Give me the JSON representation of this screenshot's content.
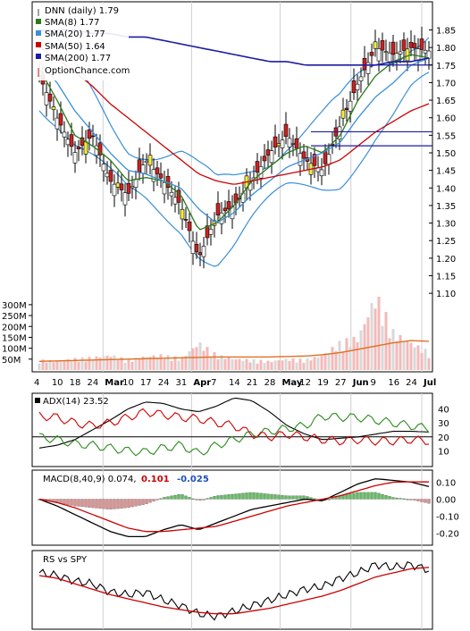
{
  "legend": {
    "ticker": "DNN (daily) 1.79",
    "sma8": "SMA(8) 1.77",
    "sma20": "SMA(20) 1.77",
    "sma50": "SMA(50) 1.64",
    "sma200": "SMA(200) 1.77",
    "site": "OptionChance.com"
  },
  "colors": {
    "up": "#ffffff",
    "down": "#cc2222",
    "doji": "#f2ee40",
    "sma8": "#2a7a1a",
    "sma20": "#3a8fd8",
    "sma50": "#cc0000",
    "sma200": "#1c1ca0",
    "bollinger": "#3a8fd8",
    "volume_down": "#f4b9b9",
    "volume_up": "#d8d8d8",
    "adx": "#000000",
    "plus_di": "#2a8a1a",
    "minus_di": "#cc0000",
    "macd_pos": "#5cbf5c",
    "macd_neg": "#e09090",
    "rs": "#000000",
    "rs_ma": "#cc0000"
  },
  "x_axis_labels": [
    "4",
    "10",
    "18",
    "24",
    "Mar",
    "10",
    "17",
    "24",
    "31",
    "Apr",
    "7",
    "14",
    "21",
    "28",
    "May",
    "12",
    "19",
    "27",
    "Jun",
    "9",
    "16",
    "24",
    "Jul"
  ],
  "price_axis": [
    "1.85",
    "1.80",
    "1.75",
    "1.70",
    "1.65",
    "1.60",
    "1.55",
    "1.50",
    "1.45",
    "1.40",
    "1.35",
    "1.30",
    "1.25",
    "1.20",
    "1.15",
    "1.10"
  ],
  "volume_axis": [
    "300M",
    "250M",
    "200M",
    "150M",
    "100M",
    "50M"
  ],
  "adx_panel": {
    "label": "ADX(14) 23.52",
    "axis": [
      "40",
      "30",
      "20",
      "10"
    ]
  },
  "macd_panel": {
    "label": "MACD(8,40,9) 0.074,",
    "v1": "0.101",
    "v2": "-0.025",
    "axis": [
      "0.10",
      "0.00",
      "-0.10",
      "-0.20"
    ]
  },
  "rs_panel": {
    "label": "RS vs SPY"
  },
  "chart_data": [
    {
      "type": "line",
      "title": "DNN (daily) 1.79",
      "x": [
        "Feb 4",
        "Feb 10",
        "Feb 18",
        "Feb 24",
        "Mar 3",
        "Mar 10",
        "Mar 17",
        "Mar 24",
        "Mar 31",
        "Apr 7",
        "Apr 14",
        "Apr 21",
        "Apr 28",
        "May 5",
        "May 12",
        "May 19",
        "May 27",
        "Jun 2",
        "Jun 9",
        "Jun 16",
        "Jun 24",
        "Jun 30",
        "Jul 3"
      ],
      "series": [
        {
          "name": "DNN",
          "values": [
            1.72,
            1.6,
            1.5,
            1.55,
            1.42,
            1.38,
            1.48,
            1.42,
            1.35,
            1.2,
            1.32,
            1.35,
            1.42,
            1.5,
            1.55,
            1.48,
            1.45,
            1.58,
            1.7,
            1.8,
            1.78,
            1.8,
            1.79
          ]
        },
        {
          "name": "SMA(8)",
          "values": [
            1.74,
            1.65,
            1.55,
            1.52,
            1.48,
            1.42,
            1.43,
            1.42,
            1.38,
            1.28,
            1.3,
            1.35,
            1.42,
            1.46,
            1.5,
            1.52,
            1.5,
            1.55,
            1.65,
            1.72,
            1.76,
            1.78,
            1.77
          ]
        },
        {
          "name": "SMA(20)",
          "values": [
            1.76,
            1.7,
            1.62,
            1.56,
            1.5,
            1.45,
            1.44,
            1.42,
            1.4,
            1.34,
            1.3,
            1.33,
            1.38,
            1.42,
            1.46,
            1.48,
            1.5,
            1.53,
            1.6,
            1.66,
            1.7,
            1.75,
            1.77
          ]
        },
        {
          "name": "SMA(50)",
          "values": [
            1.8,
            1.77,
            1.73,
            1.69,
            1.64,
            1.6,
            1.56,
            1.52,
            1.48,
            1.44,
            1.42,
            1.41,
            1.42,
            1.43,
            1.44,
            1.45,
            1.46,
            1.48,
            1.52,
            1.56,
            1.59,
            1.62,
            1.64
          ]
        },
        {
          "name": "SMA(200)",
          "values": [
            1.85,
            1.85,
            1.85,
            1.84,
            1.84,
            1.83,
            1.83,
            1.82,
            1.81,
            1.8,
            1.79,
            1.78,
            1.77,
            1.76,
            1.76,
            1.75,
            1.75,
            1.75,
            1.75,
            1.75,
            1.76,
            1.76,
            1.77
          ]
        }
      ],
      "ylim": [
        1.08,
        1.92
      ]
    },
    {
      "type": "bar",
      "title": "Volume",
      "x": [
        "Feb 4",
        "Feb 10",
        "Feb 18",
        "Feb 24",
        "Mar 3",
        "Mar 10",
        "Mar 17",
        "Mar 24",
        "Mar 31",
        "Apr 7",
        "Apr 14",
        "Apr 21",
        "Apr 28",
        "May 5",
        "May 12",
        "May 19",
        "May 27",
        "Jun 2",
        "Jun 9",
        "Jun 16",
        "Jun 24",
        "Jun 30",
        "Jul 3"
      ],
      "values": [
        40,
        35,
        45,
        50,
        60,
        40,
        55,
        60,
        45,
        110,
        60,
        45,
        40,
        35,
        45,
        40,
        60,
        110,
        130,
        300,
        150,
        110,
        70
      ],
      "ylim": [
        0,
        320
      ]
    },
    {
      "type": "line",
      "title": "ADX(14) 23.52",
      "series": [
        {
          "name": "ADX(14)",
          "values": [
            12,
            14,
            18,
            25,
            32,
            40,
            45,
            44,
            40,
            38,
            42,
            48,
            46,
            38,
            28,
            22,
            18,
            19,
            20,
            22,
            24,
            24,
            23.5
          ]
        },
        {
          "name": "+DI",
          "values": [
            20,
            18,
            15,
            14,
            12,
            10,
            9,
            12,
            14,
            8,
            14,
            18,
            22,
            24,
            26,
            28,
            35,
            34,
            34,
            32,
            30,
            28,
            26
          ]
        },
        {
          "name": "-DI",
          "values": [
            35,
            34,
            30,
            28,
            30,
            34,
            38,
            36,
            34,
            33,
            30,
            28,
            22,
            20,
            22,
            20,
            18,
            17,
            18,
            17,
            17,
            18,
            17
          ]
        }
      ],
      "ylim": [
        0,
        50
      ]
    },
    {
      "type": "line",
      "title": "MACD(8,40,9)",
      "series": [
        {
          "name": "MACD",
          "values": [
            0.0,
            -0.04,
            -0.09,
            -0.14,
            -0.19,
            -0.22,
            -0.22,
            -0.18,
            -0.15,
            -0.18,
            -0.14,
            -0.1,
            -0.06,
            -0.04,
            -0.02,
            0.0,
            -0.01,
            0.04,
            0.09,
            0.12,
            0.11,
            0.1,
            0.074
          ]
        },
        {
          "name": "Signal",
          "values": [
            0.0,
            -0.02,
            -0.05,
            -0.09,
            -0.13,
            -0.17,
            -0.19,
            -0.19,
            -0.18,
            -0.17,
            -0.16,
            -0.13,
            -0.1,
            -0.07,
            -0.04,
            -0.02,
            0.0,
            0.02,
            0.05,
            0.08,
            0.1,
            0.102,
            0.101
          ]
        },
        {
          "name": "Histogram",
          "values": [
            0.0,
            -0.02,
            -0.04,
            -0.05,
            -0.06,
            -0.05,
            -0.03,
            0.01,
            0.03,
            -0.01,
            0.02,
            0.03,
            0.04,
            0.03,
            0.02,
            0.02,
            -0.01,
            0.02,
            0.04,
            0.04,
            0.01,
            -0.002,
            -0.025
          ]
        }
      ],
      "ylim": [
        -0.26,
        0.16
      ]
    },
    {
      "type": "line",
      "title": "RS vs SPY",
      "series": [
        {
          "name": "RS",
          "values": [
            60,
            58,
            54,
            52,
            46,
            44,
            46,
            40,
            36,
            30,
            28,
            32,
            36,
            40,
            44,
            48,
            50,
            56,
            60,
            66,
            64,
            66,
            62
          ]
        },
        {
          "name": "RS MA",
          "values": [
            58,
            56,
            52,
            48,
            44,
            41,
            38,
            35,
            33,
            31,
            30,
            30,
            32,
            34,
            37,
            40,
            43,
            47,
            52,
            57,
            60,
            63,
            64
          ]
        }
      ],
      "ylim": [
        20,
        75
      ]
    }
  ]
}
